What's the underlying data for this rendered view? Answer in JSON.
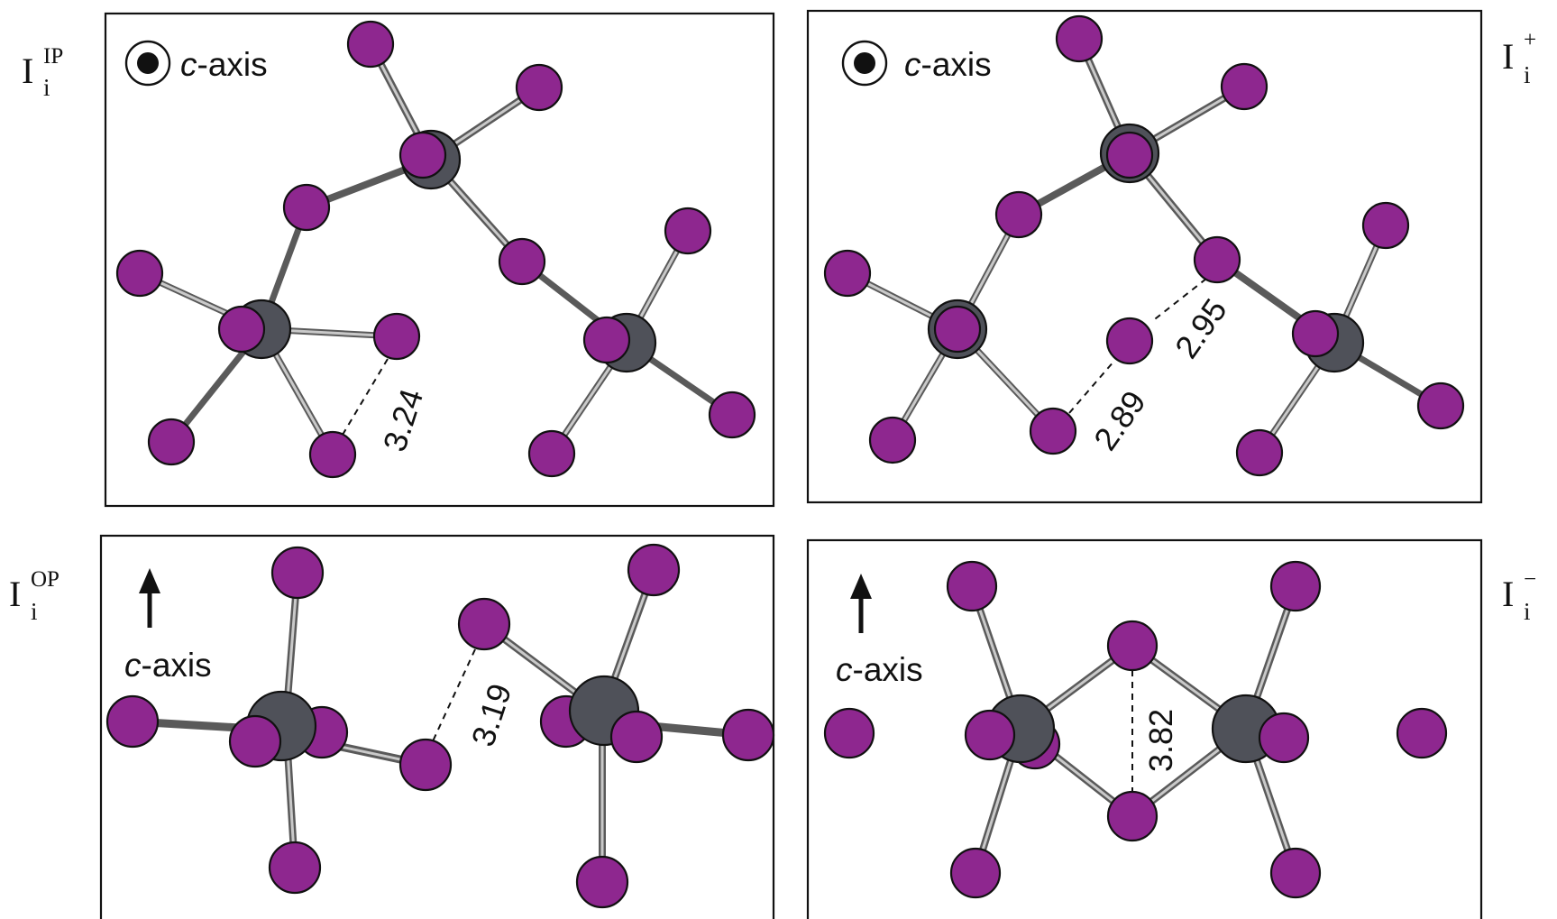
{
  "colors": {
    "iodine": "#8e278f",
    "chromium": "#4f5159",
    "bond": "#8c8c8c",
    "frame": "#111111"
  },
  "panels": {
    "ip": {
      "tag_main": "I",
      "tag_sub": "i",
      "tag_sup": "IP",
      "axis_symbol": "circled-dot-icon",
      "axis_prefix": "c",
      "axis_suffix": "-axis",
      "distances": [
        "3.24"
      ]
    },
    "plus": {
      "tag_main": "I",
      "tag_sub": "i",
      "tag_sup": "+",
      "axis_symbol": "circled-dot-icon",
      "axis_prefix": "c",
      "axis_suffix": "-axis",
      "distances": [
        "2.89",
        "2.95"
      ]
    },
    "op": {
      "tag_main": "I",
      "tag_sub": "i",
      "tag_sup": "OP",
      "axis_symbol": "up-arrow-icon",
      "axis_prefix": "c",
      "axis_suffix": "-axis",
      "distances": [
        "3.19"
      ]
    },
    "minus": {
      "tag_main": "I",
      "tag_sub": "i",
      "tag_sup": "−",
      "axis_symbol": "up-arrow-icon",
      "axis_prefix": "c",
      "axis_suffix": "-axis",
      "distances": [
        "3.82"
      ]
    }
  }
}
